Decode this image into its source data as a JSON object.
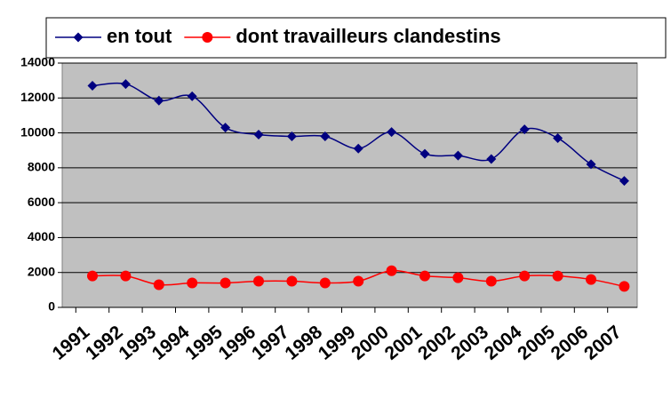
{
  "chart_data": {
    "type": "line",
    "categories": [
      "1991",
      "1992",
      "1993",
      "1994",
      "1995",
      "1996",
      "1997",
      "1998",
      "1999",
      "2000",
      "2001",
      "2002",
      "2003",
      "2004",
      "2005",
      "2006",
      "2007"
    ],
    "series": [
      {
        "name": "en tout",
        "color": "#000080",
        "marker": "diamond",
        "values": [
          12700,
          12800,
          11850,
          12100,
          10300,
          9900,
          9800,
          9800,
          9100,
          10050,
          8800,
          8700,
          8500,
          10200,
          9700,
          8200,
          7250
        ]
      },
      {
        "name": "dont travailleurs clandestins",
        "color": "#ff0000",
        "marker": "circle",
        "values": [
          1800,
          1800,
          1300,
          1400,
          1400,
          1500,
          1500,
          1400,
          1500,
          2100,
          1800,
          1700,
          1500,
          1800,
          1800,
          1600,
          1200
        ]
      }
    ],
    "ylim": [
      0,
      14000
    ],
    "yticks": [
      0,
      2000,
      4000,
      6000,
      8000,
      10000,
      12000,
      14000
    ],
    "grid": true,
    "smooth": true,
    "legend": "top"
  }
}
